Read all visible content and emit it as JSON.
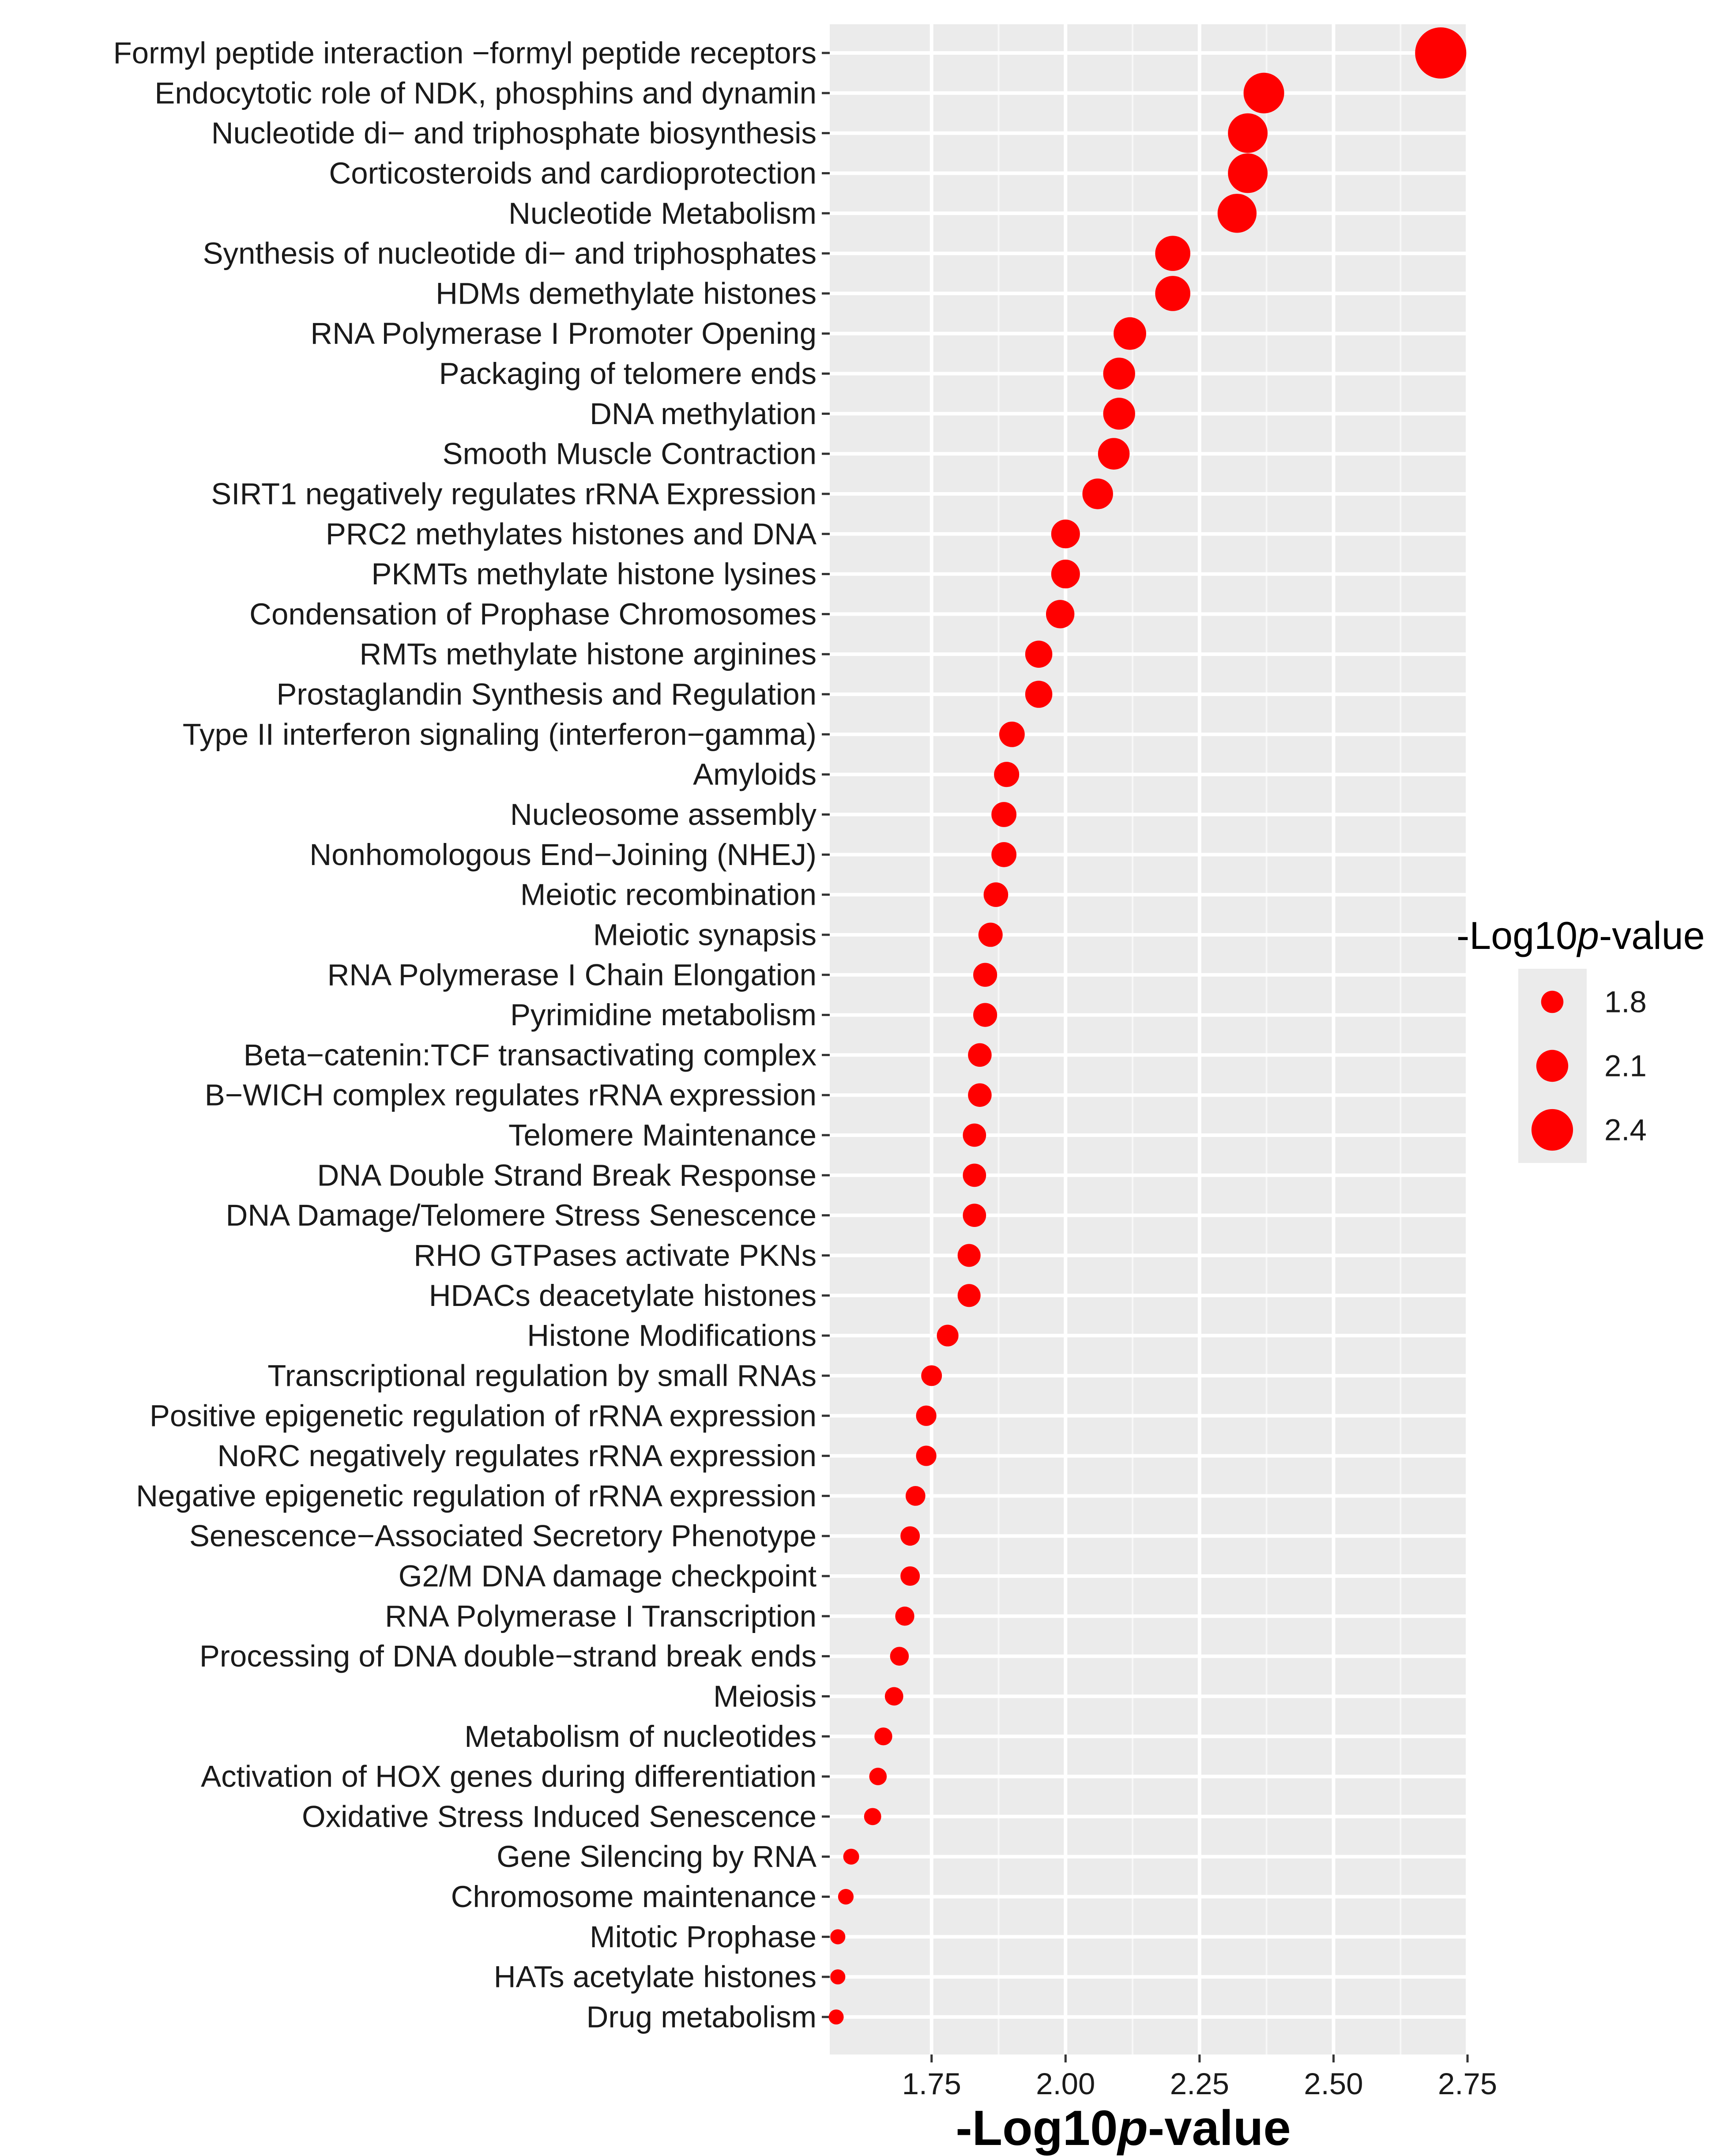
{
  "chart_data": {
    "type": "scatter",
    "xlabel_main": "-Log10",
    "xlabel_italic": "p",
    "xlabel_suffix": "-value",
    "xlim": [
      1.56,
      2.75
    ],
    "xticks": [
      1.75,
      2.0,
      2.25,
      2.5,
      2.75
    ],
    "xtick_labels": [
      "1.75",
      "2.00",
      "2.25",
      "2.50",
      "2.75"
    ],
    "grid": true,
    "panel_background": "#ebebeb",
    "point_color": "#ff0000",
    "legend": {
      "title_main": "-Log10",
      "title_italic": "p",
      "title_suffix": "-value",
      "position": "right",
      "values": [
        1.8,
        2.1,
        2.4
      ],
      "labels": [
        "1.8",
        "2.1",
        "2.4"
      ]
    },
    "categories": [
      "Formyl peptide interaction −formyl peptide receptors",
      "Endocytotic role of NDK, phosphins and dynamin",
      "Nucleotide di− and triphosphate biosynthesis",
      "Corticosteroids and cardioprotection",
      "Nucleotide Metabolism",
      "Synthesis of nucleotide di− and triphosphates",
      "HDMs demethylate histones",
      "RNA Polymerase I Promoter Opening",
      "Packaging of telomere ends",
      "DNA methylation",
      "Smooth Muscle Contraction",
      "SIRT1 negatively regulates rRNA Expression",
      "PRC2 methylates histones and DNA",
      "PKMTs methylate histone lysines",
      "Condensation of Prophase Chromosomes",
      "RMTs methylate histone arginines",
      "Prostaglandin Synthesis and Regulation",
      "Type II interferon signaling (interferon−gamma)",
      "Amyloids",
      "Nucleosome assembly",
      "Nonhomologous End−Joining (NHEJ)",
      "Meiotic recombination",
      "Meiotic synapsis",
      "RNA Polymerase I Chain Elongation",
      "Pyrimidine metabolism",
      "Beta−catenin:TCF transactivating complex",
      "B−WICH complex regulates rRNA expression",
      "Telomere Maintenance",
      "DNA Double Strand Break Response",
      "DNA Damage/Telomere Stress Senescence",
      "RHO GTPases activate PKNs",
      "HDACs deacetylate histones",
      "Histone Modifications",
      "Transcriptional regulation by small RNAs",
      "Positive epigenetic regulation of rRNA expression",
      "NoRC negatively regulates rRNA expression",
      "Negative epigenetic regulation of rRNA expression",
      "Senescence−Associated Secretory Phenotype",
      "G2/M DNA damage checkpoint",
      "RNA Polymerase I Transcription",
      "Processing of DNA double−strand break ends",
      "Meiosis",
      "Metabolism of nucleotides",
      "Activation of HOX genes during differentiation",
      "Oxidative Stress Induced Senescence",
      "Gene Silencing by RNA",
      "Chromosome maintenance",
      "Mitotic Prophase",
      "HATs acetylate histones",
      "Drug metabolism"
    ],
    "values": [
      2.7,
      2.37,
      2.34,
      2.34,
      2.32,
      2.2,
      2.2,
      2.12,
      2.1,
      2.1,
      2.09,
      2.06,
      2.0,
      2.0,
      1.99,
      1.95,
      1.95,
      1.9,
      1.89,
      1.885,
      1.885,
      1.87,
      1.86,
      1.85,
      1.85,
      1.84,
      1.84,
      1.83,
      1.83,
      1.83,
      1.82,
      1.82,
      1.78,
      1.75,
      1.74,
      1.74,
      1.72,
      1.71,
      1.71,
      1.7,
      1.69,
      1.68,
      1.66,
      1.65,
      1.64,
      1.6,
      1.59,
      1.575,
      1.575,
      1.572
    ]
  }
}
